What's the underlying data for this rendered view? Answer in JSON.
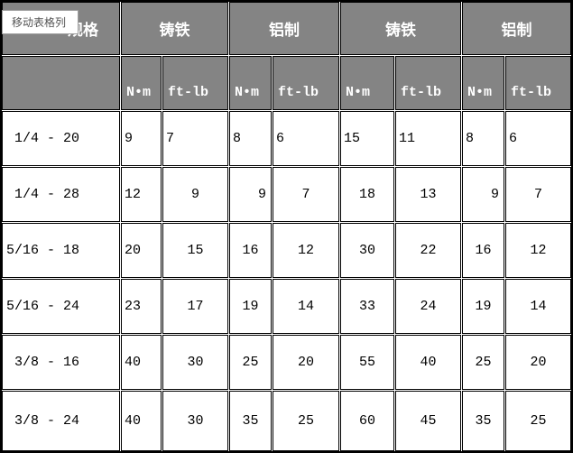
{
  "tooltip": {
    "label": "移动表格列"
  },
  "table": {
    "header_groups": [
      {
        "label": "规格"
      },
      {
        "label": "铸铁"
      },
      {
        "label": "铝制"
      },
      {
        "label": "铸铁"
      },
      {
        "label": "铝制"
      }
    ],
    "unit_row": [
      "N•m",
      "ft-lb",
      "N•m",
      "ft-lb",
      "N•m",
      "ft-lb",
      "N•m",
      "ft-lb"
    ],
    "rows": [
      {
        "label": " 1/4 - 20",
        "values": [
          "9",
          "7",
          "8",
          "6",
          "15",
          "11",
          "8",
          "6"
        ]
      },
      {
        "label": " 1/4 - 28",
        "values": [
          "12",
          "9",
          "9",
          "7",
          "18",
          "13",
          "9",
          "7"
        ]
      },
      {
        "label": "5/16 - 18",
        "values": [
          "20",
          "15",
          "16",
          "12",
          "30",
          "22",
          "16",
          "12"
        ]
      },
      {
        "label": "5/16 - 24",
        "values": [
          "23",
          "17",
          "19",
          "14",
          "33",
          "24",
          "19",
          "14"
        ]
      },
      {
        "label": " 3/8 - 16",
        "values": [
          "40",
          "30",
          "25",
          "20",
          "55",
          "40",
          "25",
          "20"
        ]
      },
      {
        "label": " 3/8 - 24",
        "values": [
          "40",
          "30",
          "35",
          "25",
          "60",
          "45",
          "35",
          "25"
        ]
      }
    ]
  },
  "colors": {
    "header_bg": "#848484",
    "header_text": "#ffffff",
    "grid_border": "#000000",
    "cell_bg": "#ffffff",
    "cell_text": "#000000",
    "tooltip_bg": "#ffffff",
    "tooltip_border": "#9e9e9e",
    "tooltip_text": "#545454"
  }
}
